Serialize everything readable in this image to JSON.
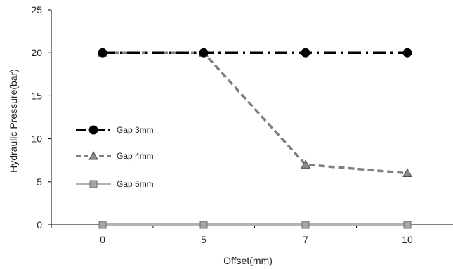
{
  "chart_data": {
    "type": "line",
    "title": "",
    "xlabel": "Offset(mm)",
    "ylabel": "Hydraulic Pressure(bar)",
    "categories": [
      "0",
      "5",
      "7",
      "10"
    ],
    "ylim": [
      0,
      25
    ],
    "yticks": [
      0,
      5,
      10,
      15,
      20,
      25
    ],
    "grid": false,
    "legend_position": "left",
    "series": [
      {
        "name": "Gap 3mm",
        "values": [
          20,
          20,
          20,
          20
        ],
        "color": "#000000",
        "marker": "circle",
        "line": "dash-dot"
      },
      {
        "name": "Gap 4mm",
        "values": [
          20,
          20,
          7,
          6
        ],
        "color": "#7f7f7f",
        "marker": "triangle",
        "line": "dashed"
      },
      {
        "name": "Gap 5mm",
        "values": [
          0,
          0,
          0,
          0
        ],
        "color": "#b3b3b3",
        "marker": "square",
        "line": "solid"
      }
    ]
  }
}
